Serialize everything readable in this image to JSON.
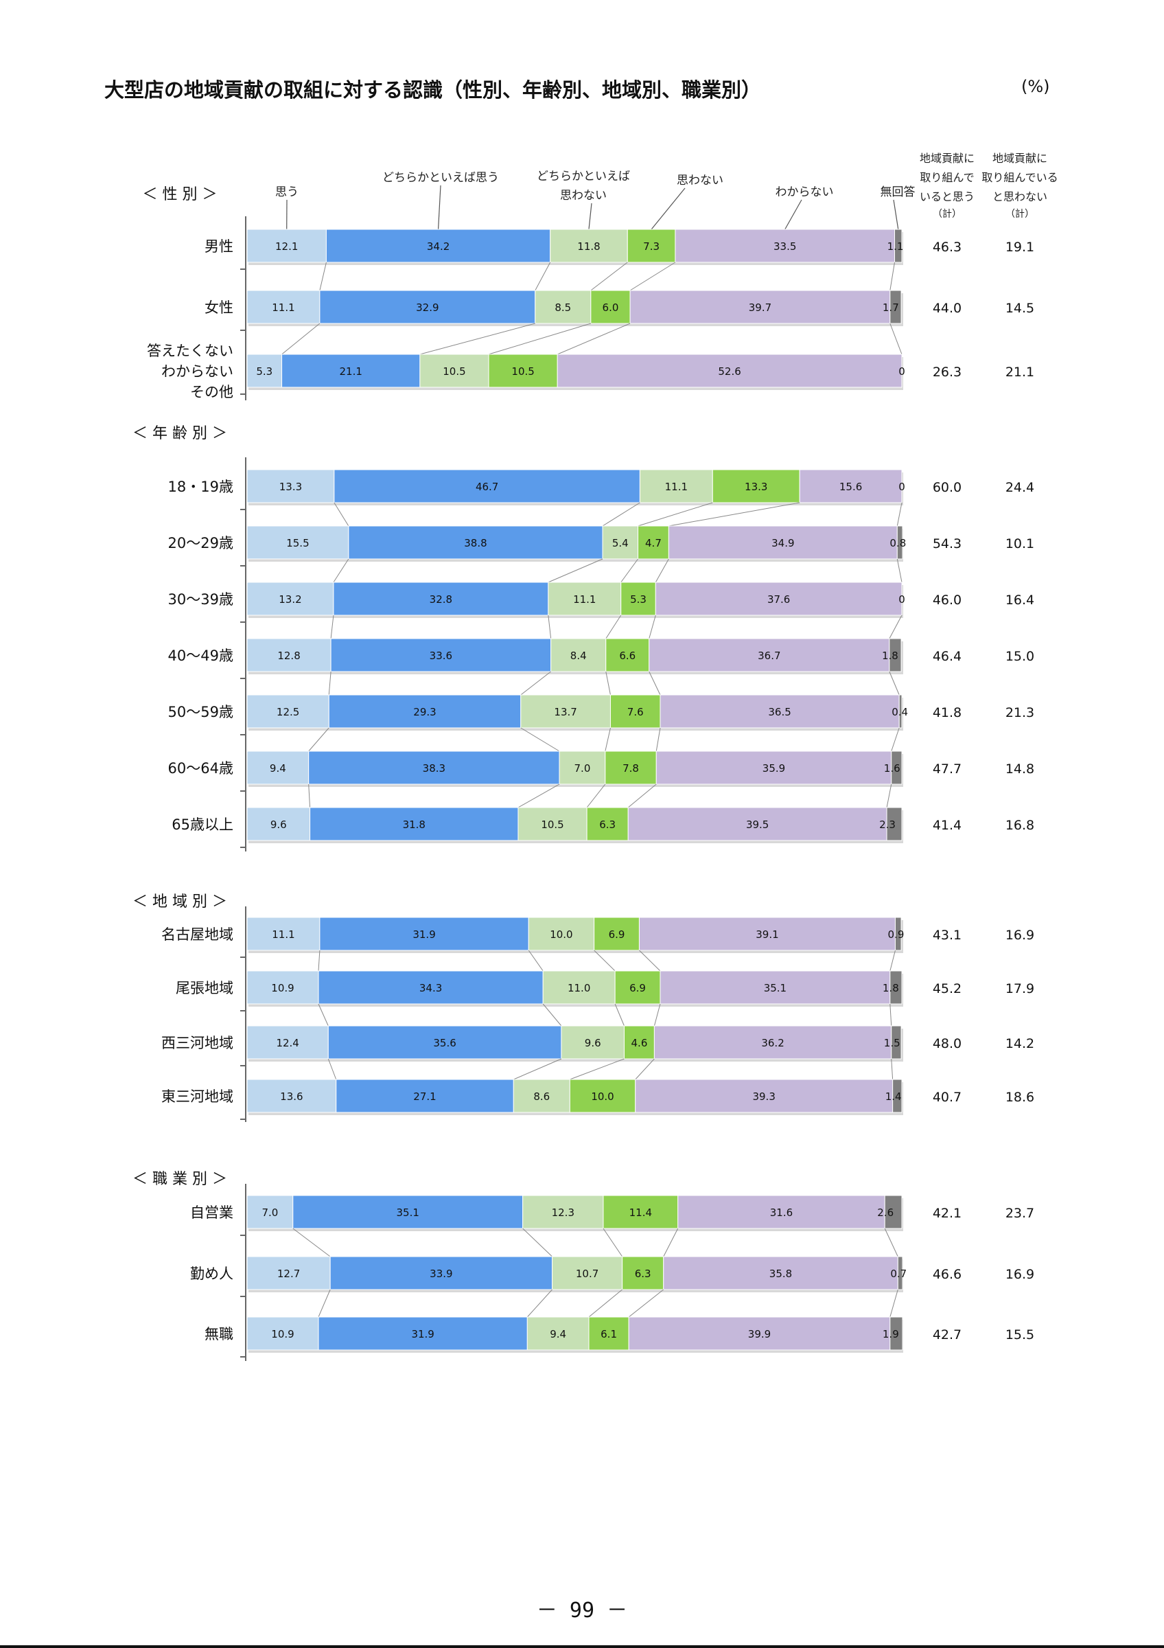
{
  "page": {
    "title": "大型店の地域貢献の取組に対する認識（性別、年齢別、地域別、職業別）",
    "unit": "(%)",
    "page_number": "－ 99 －"
  },
  "chart_data": {
    "type": "bar",
    "orientation": "horizontal",
    "stacked": true,
    "normalized": true,
    "series": [
      {
        "name": "思う",
        "color": "#bdd7ee"
      },
      {
        "name": "どちらかといえば思う",
        "color": "#5b9bea"
      },
      {
        "name": "どちらかといえば思わない",
        "color": "#c6e0b4"
      },
      {
        "name": "思わない",
        "color": "#8fd14f"
      },
      {
        "name": "わからない",
        "color": "#c5b8da"
      },
      {
        "name": "無回答",
        "color": "#7f7f7f"
      }
    ],
    "series_label_lines": [
      [
        "思う"
      ],
      [
        "どちらかといえば思う"
      ],
      [
        "どちらかといえば",
        "思わない"
      ],
      [
        "思わない"
      ],
      [
        "わからない"
      ],
      [
        "無回答"
      ]
    ],
    "summary_headers": [
      {
        "lines": [
          "地域貢献に",
          "取り組んで",
          "いると思う",
          "（計）"
        ]
      },
      {
        "lines": [
          "地域貢献に",
          "取り組んでいる",
          "と思わない",
          "（計）"
        ]
      }
    ],
    "groups": [
      {
        "heading": "＜ 性 別 ＞",
        "rows": [
          {
            "label": [
              "男性"
            ],
            "values": [
              12.1,
              34.2,
              11.8,
              7.3,
              33.5,
              1.1
            ],
            "labels": [
              "12.1",
              "34.2",
              "11.8",
              "7.3",
              "33.5",
              "1.1"
            ],
            "summary": [
              "46.3",
              "19.1"
            ]
          },
          {
            "label": [
              "女性"
            ],
            "values": [
              11.1,
              32.9,
              8.5,
              6.0,
              39.7,
              1.7
            ],
            "labels": [
              "11.1",
              "32.9",
              "8.5",
              "6.0",
              "39.7",
              "1.7"
            ],
            "summary": [
              "44.0",
              "14.5"
            ]
          },
          {
            "label": [
              "答えたくない",
              "わからない",
              "その他"
            ],
            "values": [
              5.3,
              21.1,
              10.5,
              10.5,
              52.6,
              0
            ],
            "labels": [
              "5.3",
              "21.1",
              "10.5",
              "10.5",
              "52.6",
              "0"
            ],
            "summary": [
              "26.3",
              "21.1"
            ]
          }
        ]
      },
      {
        "heading": "＜ 年 齢 別 ＞",
        "rows": [
          {
            "label": [
              "18・19歳"
            ],
            "values": [
              13.3,
              46.7,
              11.1,
              13.3,
              15.6,
              0
            ],
            "labels": [
              "13.3",
              "46.7",
              "11.1",
              "13.3",
              "15.6",
              "0"
            ],
            "summary": [
              "60.0",
              "24.4"
            ]
          },
          {
            "label": [
              "20～29歳"
            ],
            "values": [
              15.5,
              38.8,
              5.4,
              4.7,
              34.9,
              0.8
            ],
            "labels": [
              "15.5",
              "38.8",
              "5.4",
              "4.7",
              "34.9",
              "0.8"
            ],
            "summary": [
              "54.3",
              "10.1"
            ]
          },
          {
            "label": [
              "30～39歳"
            ],
            "values": [
              13.2,
              32.8,
              11.1,
              5.3,
              37.6,
              0
            ],
            "labels": [
              "13.2",
              "32.8",
              "11.1",
              "5.3",
              "37.6",
              "0"
            ],
            "summary": [
              "46.0",
              "16.4"
            ]
          },
          {
            "label": [
              "40～49歳"
            ],
            "values": [
              12.8,
              33.6,
              8.4,
              6.6,
              36.7,
              1.8
            ],
            "labels": [
              "12.8",
              "33.6",
              "8.4",
              "6.6",
              "36.7",
              "1.8"
            ],
            "summary": [
              "46.4",
              "15.0"
            ]
          },
          {
            "label": [
              "50～59歳"
            ],
            "values": [
              12.5,
              29.3,
              13.7,
              7.6,
              36.5,
              0.4
            ],
            "labels": [
              "12.5",
              "29.3",
              "13.7",
              "7.6",
              "36.5",
              "0.4"
            ],
            "summary": [
              "41.8",
              "21.3"
            ]
          },
          {
            "label": [
              "60～64歳"
            ],
            "values": [
              9.4,
              38.3,
              7.0,
              7.8,
              35.9,
              1.6
            ],
            "labels": [
              "9.4",
              "38.3",
              "7.0",
              "7.8",
              "35.9",
              "1.6"
            ],
            "summary": [
              "47.7",
              "14.8"
            ]
          },
          {
            "label": [
              "65歳以上"
            ],
            "values": [
              9.6,
              31.8,
              10.5,
              6.3,
              39.5,
              2.3
            ],
            "labels": [
              "9.6",
              "31.8",
              "10.5",
              "6.3",
              "39.5",
              "2.3"
            ],
            "summary": [
              "41.4",
              "16.8"
            ]
          }
        ]
      },
      {
        "heading": "＜ 地 域 別 ＞",
        "rows": [
          {
            "label": [
              "名古屋地域"
            ],
            "values": [
              11.1,
              31.9,
              10.0,
              6.9,
              39.1,
              0.9
            ],
            "labels": [
              "11.1",
              "31.9",
              "10.0",
              "6.9",
              "39.1",
              "0.9"
            ],
            "summary": [
              "43.1",
              "16.9"
            ]
          },
          {
            "label": [
              "尾張地域"
            ],
            "values": [
              10.9,
              34.3,
              11.0,
              6.9,
              35.1,
              1.8
            ],
            "labels": [
              "10.9",
              "34.3",
              "11.0",
              "6.9",
              "35.1",
              "1.8"
            ],
            "summary": [
              "45.2",
              "17.9"
            ]
          },
          {
            "label": [
              "西三河地域"
            ],
            "values": [
              12.4,
              35.6,
              9.6,
              4.6,
              36.2,
              1.5
            ],
            "labels": [
              "12.4",
              "35.6",
              "9.6",
              "4.6",
              "36.2",
              "1.5"
            ],
            "summary": [
              "48.0",
              "14.2"
            ]
          },
          {
            "label": [
              "東三河地域"
            ],
            "values": [
              13.6,
              27.1,
              8.6,
              10.0,
              39.3,
              1.4
            ],
            "labels": [
              "13.6",
              "27.1",
              "8.6",
              "10.0",
              "39.3",
              "1.4"
            ],
            "summary": [
              "40.7",
              "18.6"
            ]
          }
        ]
      },
      {
        "heading": "＜ 職 業 別 ＞",
        "rows": [
          {
            "label": [
              "自営業"
            ],
            "values": [
              7.0,
              35.1,
              12.3,
              11.4,
              31.6,
              2.6
            ],
            "labels": [
              "7.0",
              "35.1",
              "12.3",
              "11.4",
              "31.6",
              "2.6"
            ],
            "summary": [
              "42.1",
              "23.7"
            ]
          },
          {
            "label": [
              "勤め人"
            ],
            "values": [
              12.7,
              33.9,
              10.7,
              6.3,
              35.8,
              0.7
            ],
            "labels": [
              "12.7",
              "33.9",
              "10.7",
              "6.3",
              "35.8",
              "0.7"
            ],
            "summary": [
              "46.6",
              "16.9"
            ]
          },
          {
            "label": [
              "無職"
            ],
            "values": [
              10.9,
              31.9,
              9.4,
              6.1,
              39.9,
              1.9
            ],
            "labels": [
              "10.9",
              "31.9",
              "9.4",
              "6.1",
              "39.9",
              "1.9"
            ],
            "summary": [
              "42.7",
              "15.5"
            ]
          }
        ]
      }
    ]
  }
}
